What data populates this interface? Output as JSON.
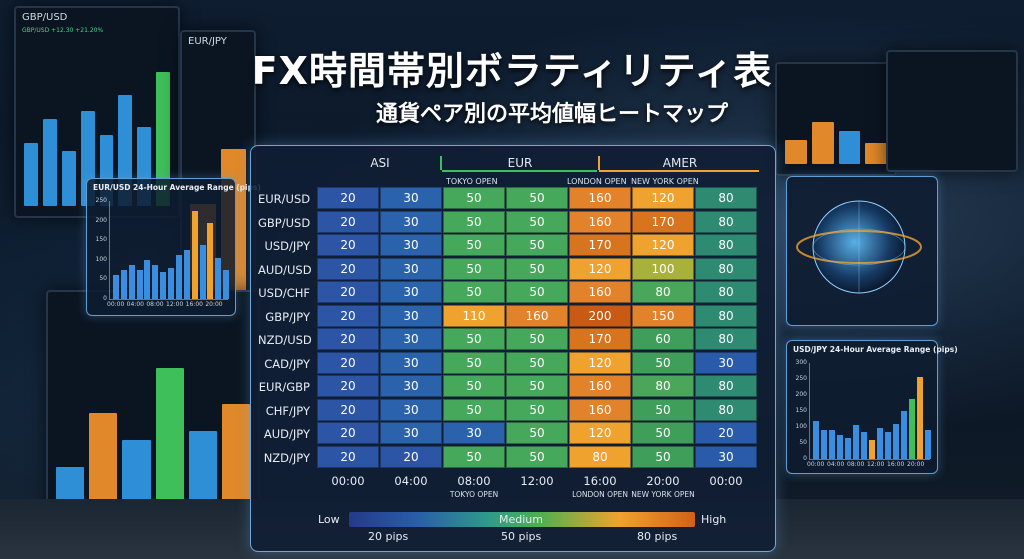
{
  "header": {
    "title": "FX時間帯別ボラティリティ表",
    "subtitle": "通貨ペア別の平均値幅ヒートマップ"
  },
  "background_monitors": {
    "left_top": {
      "title": "GBP/USD",
      "ticker": "GBP/USD +12.30 +21.20%"
    },
    "left_mid": {
      "title": "EUR/JPY"
    }
  },
  "heatmap": {
    "sessions": [
      "ASI",
      "EUR",
      "AMER"
    ],
    "session_events": [
      "TOKYO OPEN",
      "LONDON OPEN",
      "NEW YORK OPEN"
    ],
    "pairs": [
      "EUR/USD",
      "GBP/USD",
      "USD/JPY",
      "AUD/USD",
      "USD/CHF",
      "GBP/JPY",
      "NZD/USD",
      "CAD/JPY",
      "EUR/GBP",
      "CHF/JPY",
      "AUD/JPY",
      "NZD/JPY"
    ],
    "times": [
      "00:00",
      "04:00",
      "08:00",
      "12:00",
      "16:00",
      "20:00",
      "00:00"
    ],
    "time_events": [
      "",
      "",
      "TOKYO OPEN",
      "",
      "LONDON OPEN",
      "NEW YORK OPEN",
      ""
    ],
    "values": [
      [
        20,
        30,
        50,
        50,
        160,
        120,
        80
      ],
      [
        20,
        30,
        50,
        50,
        160,
        170,
        80
      ],
      [
        20,
        30,
        50,
        50,
        170,
        120,
        80
      ],
      [
        20,
        30,
        50,
        50,
        120,
        100,
        80
      ],
      [
        20,
        30,
        50,
        50,
        160,
        80,
        80
      ],
      [
        20,
        30,
        110,
        160,
        200,
        150,
        80
      ],
      [
        20,
        30,
        50,
        50,
        170,
        60,
        80
      ],
      [
        20,
        30,
        50,
        50,
        120,
        50,
        30
      ],
      [
        20,
        30,
        50,
        50,
        160,
        80,
        80
      ],
      [
        20,
        30,
        50,
        50,
        160,
        50,
        80
      ],
      [
        20,
        30,
        30,
        50,
        120,
        50,
        20
      ],
      [
        20,
        20,
        50,
        50,
        80,
        50,
        30
      ]
    ],
    "legend": {
      "low": "Low",
      "medium": "Medium",
      "high": "High",
      "ticks": [
        "20 pips",
        "50 pips",
        "80 pips"
      ]
    },
    "colors": {
      "low": "#2c55a6",
      "mid": "#4db04f",
      "orange": "#f0a22e",
      "high": "#c85a14"
    }
  },
  "chart_left": {
    "title": "EUR/USD 24-Hour Average Range (pips)",
    "yticks": [
      "250",
      "200",
      "150",
      "100",
      "50",
      "0"
    ],
    "xticks": [
      "00:00",
      "04:00",
      "08:00",
      "12:00",
      "16:00",
      "20:00"
    ]
  },
  "chart_right": {
    "title": "USD/JPY 24-Hour Average Range (pips)",
    "yticks": [
      "300",
      "250",
      "200",
      "150",
      "100",
      "50",
      "0"
    ],
    "xticks": [
      "00:00",
      "04:00",
      "08:00",
      "12:00",
      "16:00",
      "20:00"
    ]
  }
}
